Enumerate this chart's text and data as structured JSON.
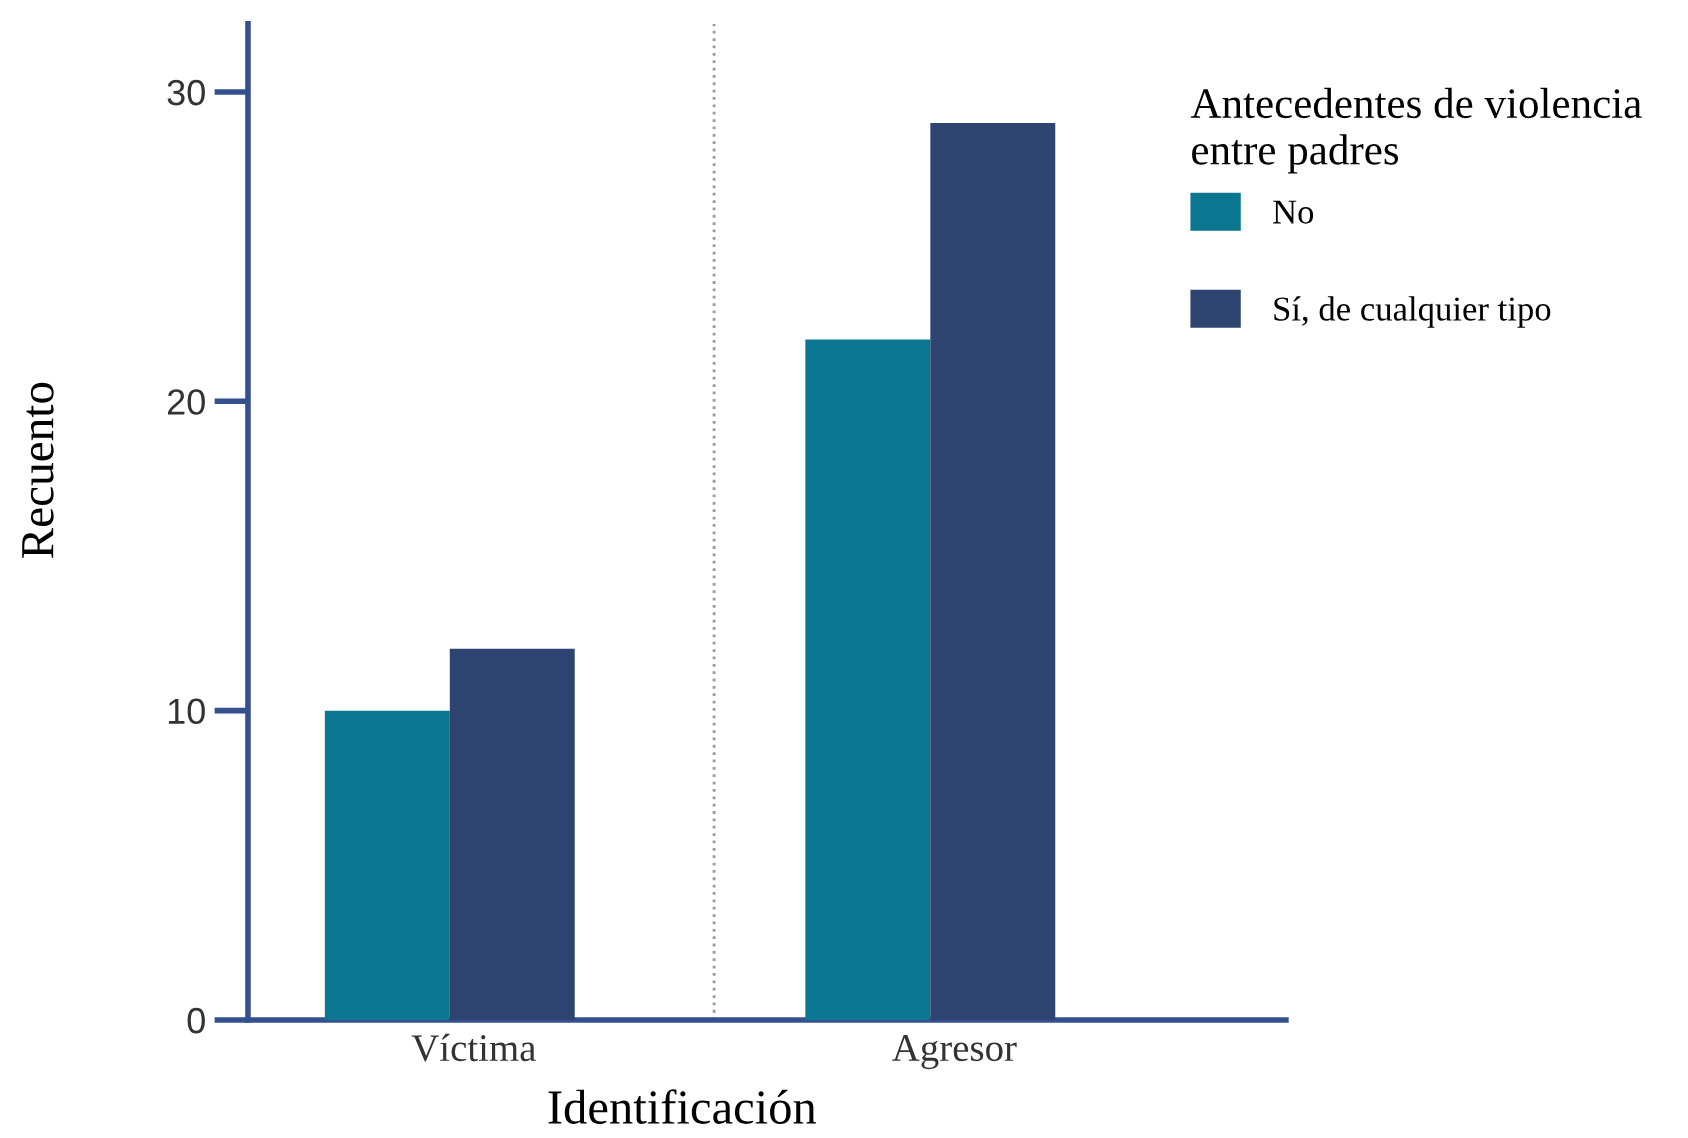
{
  "chart_data": {
    "type": "bar",
    "xlabel": "Identificación",
    "ylabel": "Recuento",
    "legend_title": "Antecedentes de violencia\nentre padres",
    "categories": [
      "Víctima",
      "Agresor"
    ],
    "series": [
      {
        "name": "No",
        "color": "#0a768f",
        "values": [
          10,
          22
        ]
      },
      {
        "name": "Sí, de cualquier tipo",
        "color": "#2d4471",
        "values": [
          12,
          29
        ]
      }
    ],
    "ylim": [
      0,
      32.2
    ],
    "yticks": [
      0,
      10,
      20,
      30
    ],
    "legend": "top right"
  }
}
